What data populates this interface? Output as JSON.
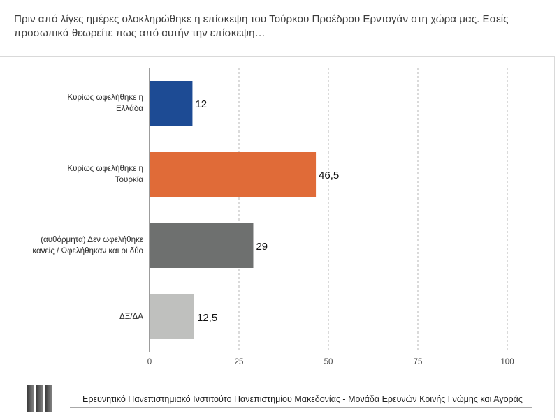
{
  "chart_data": {
    "type": "bar",
    "orientation": "horizontal",
    "title": "Πριν από λίγες ημέρες ολοκληρώθηκε η επίσκεψη του Τούρκου Προέδρου Ερντογάν στη χώρα μας. Εσείς προσωπικά θεωρείτε πως από αυτήν την επίσκεψη…",
    "categories": [
      "Κυρίως ωφελήθηκε η\nΕλλάδα",
      "Κυρίως ωφελήθηκε η\nΤουρκία",
      "(αυθόρμητα) Δεν ωφελήθηκε\nκανείς / Ωφελήθηκαν και οι δύο",
      "ΔΞ/ΔΑ"
    ],
    "values": [
      12,
      46.5,
      29,
      12.5
    ],
    "data_labels": [
      "12",
      "46,5",
      "29",
      "12,5"
    ],
    "colors": [
      "#1d4b94",
      "#e06b38",
      "#6e706f",
      "#bfc0be"
    ],
    "xlim": [
      0,
      100
    ],
    "x_ticks": [
      0,
      25,
      50,
      75,
      100
    ],
    "grid": true,
    "legend": false
  },
  "footer": {
    "logo_icon": "three-bars-logo",
    "text": "Ερευνητικό Πανεπιστημιακό Ινστιτούτο Πανεπιστημίου Μακεδονίας - Μονάδα Ερευνών Κοινής Γνώμης και Αγοράς"
  }
}
